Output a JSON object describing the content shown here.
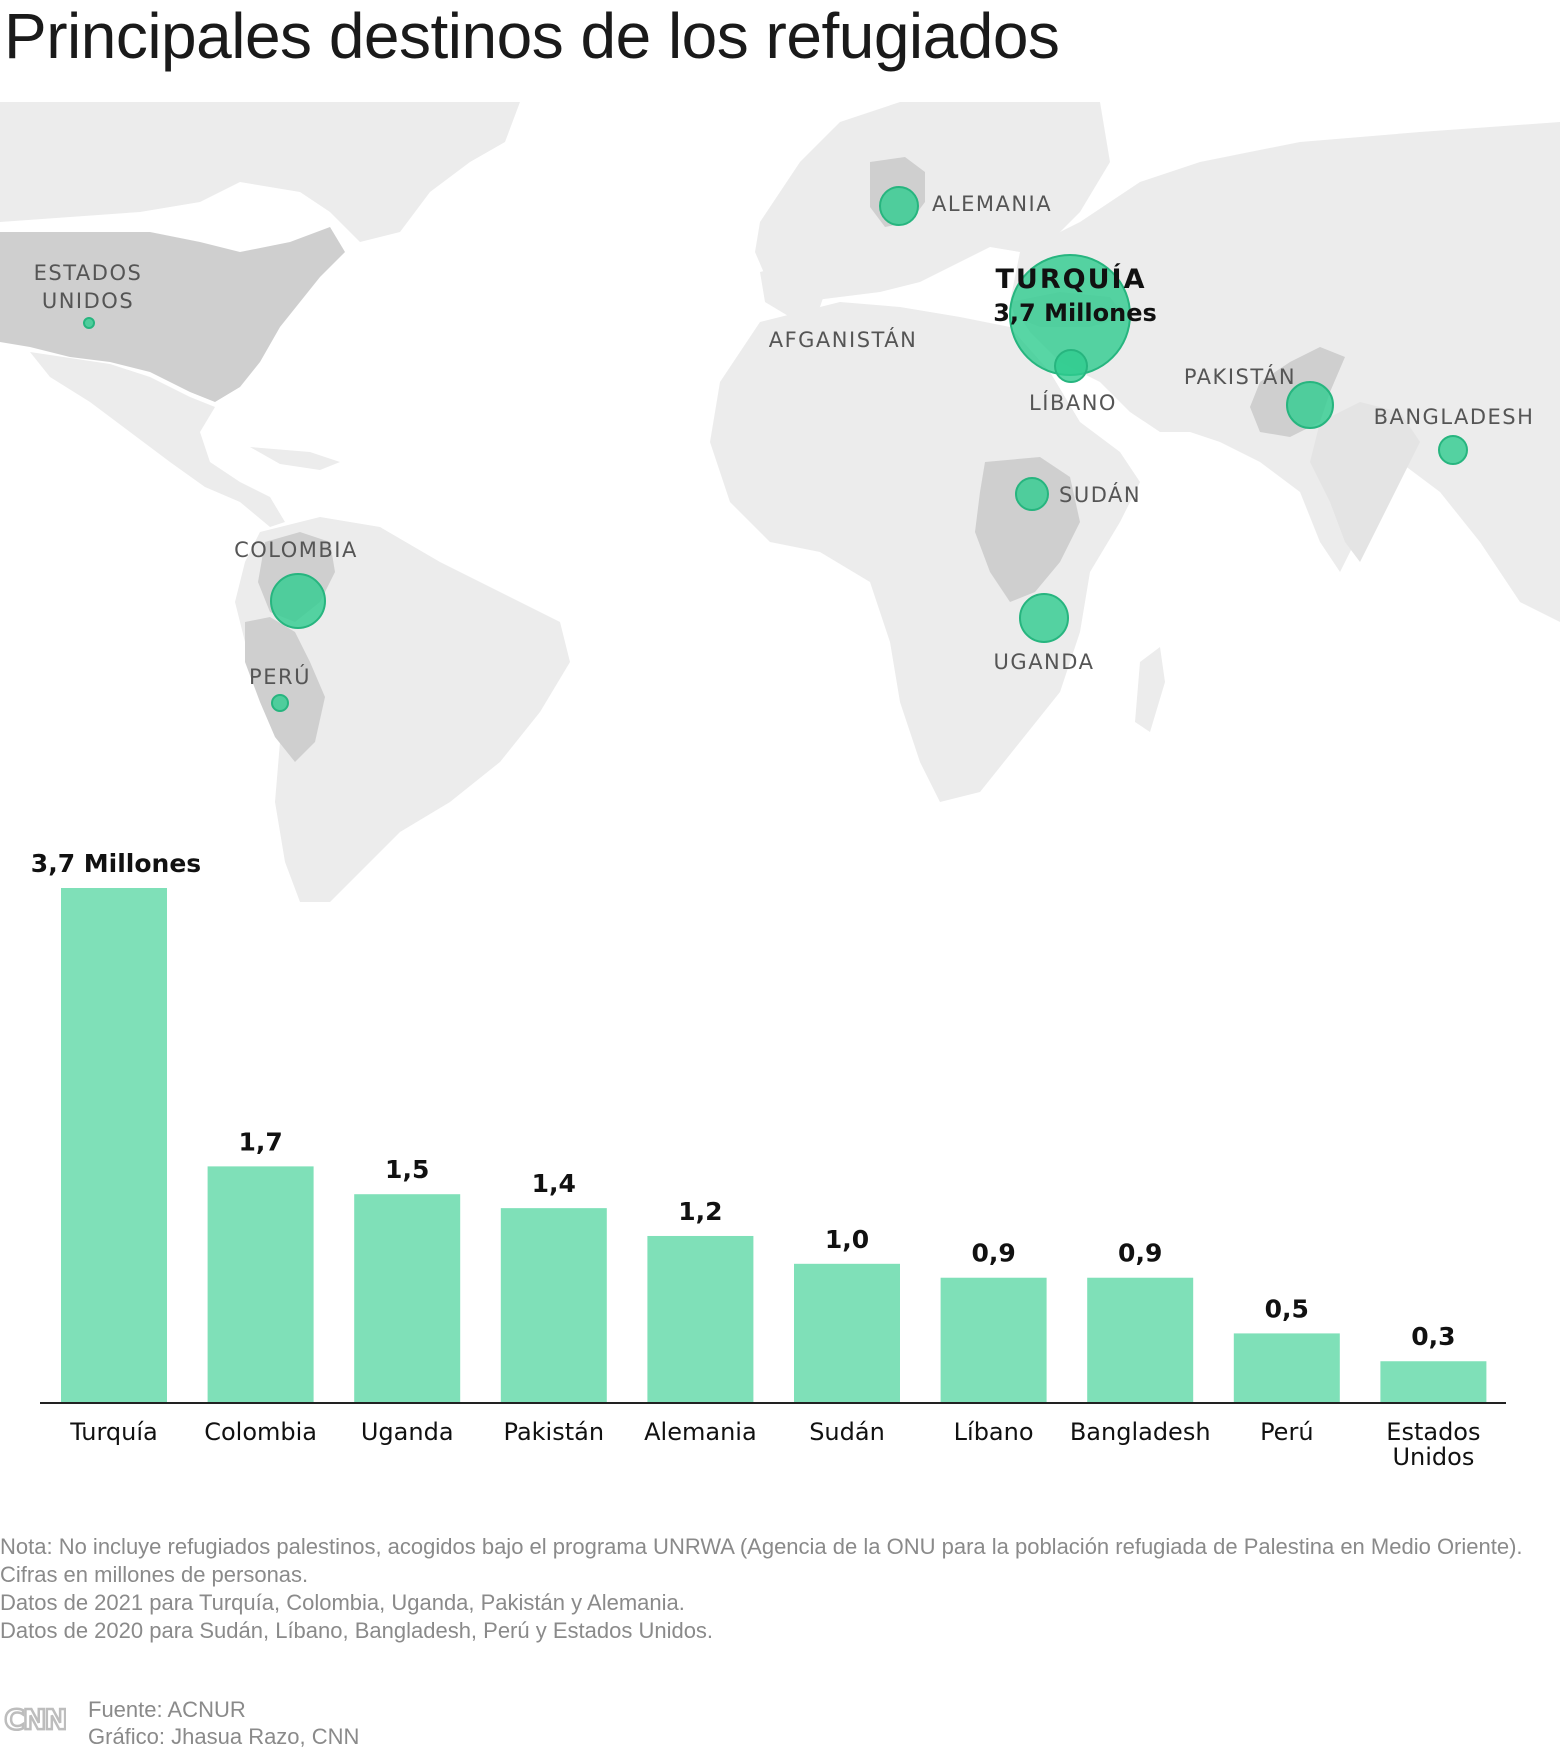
{
  "title": "Principales destinos de los refugiados",
  "colors": {
    "land": "#ececec",
    "land_highlight": "#cfcfcf",
    "borders": "#ffffff",
    "bubble_fill": "#2ecc8f",
    "bubble_stroke": "#27b57f",
    "bar": "#7fe0b8",
    "axis": "#222222",
    "note_text": "#8a8a8a"
  },
  "map": {
    "labels": {
      "estados_unidos_1": "ESTADOS",
      "estados_unidos_2": "UNIDOS",
      "alemania": "ALEMANIA",
      "turquia": "TURQUÍA",
      "turquia_value": "3,7 Millones",
      "afganistan": "AFGANISTÁN",
      "libano": "LÍBANO",
      "pakistan": "PAKISTÁN",
      "bangladesh": "BANGLADESH",
      "sudan": "SUDÁN",
      "colombia": "COLOMBIA",
      "peru": "PERÚ",
      "uganda": "UGANDA"
    }
  },
  "chart_data": {
    "type": "bar",
    "title": "Principales destinos de los refugiados",
    "unit": "millones de personas",
    "categories": [
      "Turquía",
      "Colombia",
      "Uganda",
      "Pakistán",
      "Alemania",
      "Sudán",
      "Líbano",
      "Bangladesh",
      "Perú",
      "Estados Unidos"
    ],
    "values": [
      3.7,
      1.7,
      1.5,
      1.4,
      1.2,
      1.0,
      0.9,
      0.9,
      0.5,
      0.3
    ],
    "value_labels": [
      "3,7 Millones",
      "1,7",
      "1,5",
      "1,4",
      "1,2",
      "1,0",
      "0,9",
      "0,9",
      "0,5",
      "0,3"
    ],
    "category_lines": [
      [
        "Turquía"
      ],
      [
        "Colombia"
      ],
      [
        "Uganda"
      ],
      [
        "Pakistán"
      ],
      [
        "Alemania"
      ],
      [
        "Sudán"
      ],
      [
        "Líbano"
      ],
      [
        "Bangladesh"
      ],
      [
        "Perú"
      ],
      [
        "Estados",
        "Unidos"
      ]
    ],
    "ylim": [
      0,
      3.7
    ],
    "grid": false,
    "legend": "none"
  },
  "notes": {
    "line1": "Nota: No incluye refugiados palestinos, acogidos bajo el programa UNRWA (Agencia de la ONU para la población refugiada de Palestina en Medio Oriente). Cifras en millones de personas.",
    "line2": "Datos de 2021 para Turquía, Colombia, Uganda, Pakistán y Alemania.",
    "line3": "Datos de 2020 para Sudán, Líbano, Bangladesh, Perú y Estados Unidos."
  },
  "footer": {
    "logo_text": "CNN",
    "source": "Fuente: ACNUR",
    "credit": "Gráfico: Jhasua Razo, CNN"
  }
}
